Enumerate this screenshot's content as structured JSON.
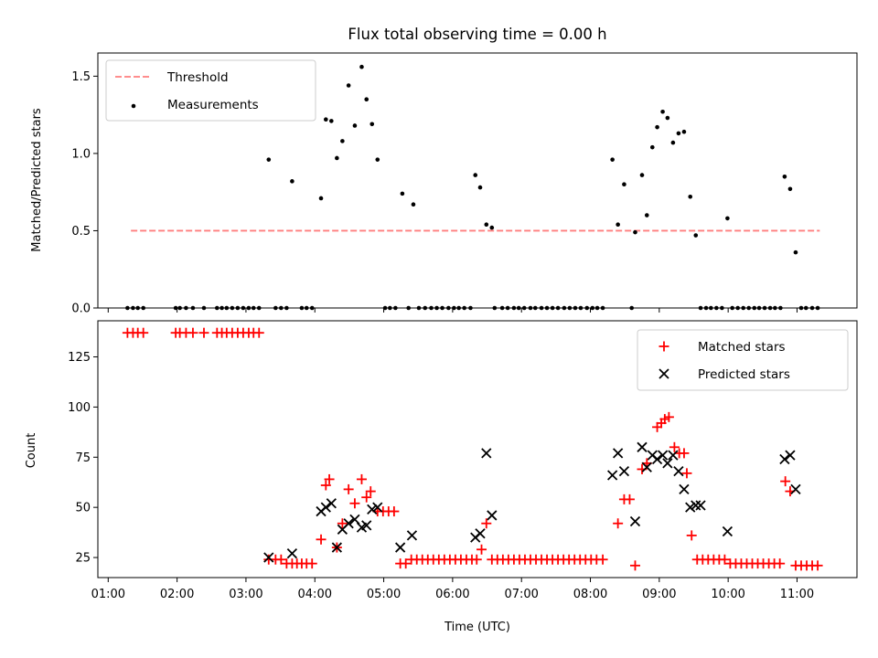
{
  "chart_data": [
    {
      "type": "scatter",
      "title": "Flux total observing time = 0.00 h",
      "xlabel": "",
      "ylabel": "Matched/Predicted stars",
      "xlim": [
        0.85,
        11.87
      ],
      "ylim": [
        0,
        1.65
      ],
      "xticks": [
        1,
        2,
        3,
        4,
        5,
        6,
        7,
        8,
        9,
        10,
        11
      ],
      "yticks": [
        {
          "value": 0,
          "label": "0.0"
        },
        {
          "value": 0.5,
          "label": "0.5"
        },
        {
          "value": 1.0,
          "label": "1.0"
        },
        {
          "value": 1.5,
          "label": "1.5"
        }
      ],
      "legend_position": "top-left",
      "series": [
        {
          "name": "Threshold",
          "kind": "line",
          "style": "dashed",
          "color": "#ff7f7f",
          "x": [
            1.33,
            11.33
          ],
          "y": [
            0.5,
            0.5
          ]
        },
        {
          "name": "Measurements",
          "kind": "scatter",
          "color": "#000000",
          "x": [
            1.28,
            1.36,
            1.43,
            1.51,
            1.98,
            2.04,
            2.13,
            2.23,
            2.39,
            2.58,
            2.65,
            2.72,
            2.8,
            2.88,
            2.96,
            3.04,
            3.11,
            3.19,
            3.33,
            3.43,
            3.51,
            3.59,
            3.67,
            3.81,
            3.88,
            3.96,
            4.09,
            4.16,
            4.24,
            4.32,
            4.4,
            4.49,
            4.58,
            4.68,
            4.75,
            4.83,
            4.91,
            5.02,
            5.09,
            5.17,
            5.27,
            5.36,
            5.43,
            5.51,
            5.6,
            5.69,
            5.77,
            5.85,
            5.94,
            6.02,
            6.09,
            6.17,
            6.26,
            6.33,
            6.4,
            6.49,
            6.57,
            6.61,
            6.72,
            6.8,
            6.89,
            6.96,
            7.04,
            7.13,
            7.2,
            7.29,
            7.37,
            7.45,
            7.53,
            7.62,
            7.7,
            7.78,
            7.86,
            7.95,
            8.03,
            8.1,
            8.18,
            8.32,
            8.4,
            8.49,
            8.6,
            8.65,
            8.75,
            8.82,
            8.9,
            8.97,
            9.05,
            9.12,
            9.2,
            9.28,
            9.36,
            9.45,
            9.53,
            9.6,
            9.68,
            9.75,
            9.83,
            9.91,
            9.99,
            10.06,
            10.14,
            10.22,
            10.3,
            10.38,
            10.45,
            10.53,
            10.61,
            10.68,
            10.76,
            10.82,
            10.9,
            10.98,
            11.06,
            11.13,
            11.22,
            11.3
          ],
          "y": [
            0,
            0,
            0,
            0,
            0,
            0,
            0,
            0,
            0,
            0,
            0,
            0,
            0,
            0,
            0,
            0,
            0,
            0,
            0.96,
            0,
            0,
            0,
            0.82,
            0,
            0,
            0,
            0.71,
            1.22,
            1.21,
            0.97,
            1.08,
            1.44,
            1.18,
            1.56,
            1.35,
            1.19,
            0.96,
            0,
            0,
            0,
            0.74,
            0,
            0.67,
            0,
            0,
            0,
            0,
            0,
            0,
            0,
            0,
            0,
            0,
            0.86,
            0.78,
            0.54,
            0.52,
            0,
            0,
            0,
            0,
            0,
            0,
            0,
            0,
            0,
            0,
            0,
            0,
            0,
            0,
            0,
            0,
            0,
            0,
            0,
            0,
            0.96,
            0.54,
            0.8,
            0,
            0.49,
            0.86,
            0.6,
            1.04,
            1.17,
            1.27,
            1.23,
            1.07,
            1.13,
            1.14,
            0.72,
            0.47,
            0,
            0,
            0,
            0,
            0,
            0.58,
            0,
            0,
            0,
            0,
            0,
            0,
            0,
            0,
            0,
            0,
            0.85,
            0.77,
            0.36,
            0,
            0,
            0,
            0
          ]
        }
      ]
    },
    {
      "type": "scatter",
      "title": "",
      "xlabel": "Time (UTC)",
      "ylabel": "Count",
      "xlim": [
        0.85,
        11.87
      ],
      "ylim": [
        15,
        143
      ],
      "xticks": [
        {
          "value": 1,
          "label": "01:00"
        },
        {
          "value": 2,
          "label": "02:00"
        },
        {
          "value": 3,
          "label": "03:00"
        },
        {
          "value": 4,
          "label": "04:00"
        },
        {
          "value": 5,
          "label": "05:00"
        },
        {
          "value": 6,
          "label": "06:00"
        },
        {
          "value": 7,
          "label": "07:00"
        },
        {
          "value": 8,
          "label": "08:00"
        },
        {
          "value": 9,
          "label": "09:00"
        },
        {
          "value": 10,
          "label": "10:00"
        },
        {
          "value": 11,
          "label": "11:00"
        }
      ],
      "yticks": [
        {
          "value": 25,
          "label": "25"
        },
        {
          "value": 50,
          "label": "50"
        },
        {
          "value": 75,
          "label": "75"
        },
        {
          "value": 100,
          "label": "100"
        },
        {
          "value": 125,
          "label": "125"
        }
      ],
      "legend_position": "top-right",
      "series": [
        {
          "name": "Matched stars",
          "kind": "scatter",
          "marker": "plus",
          "color": "#ff0000",
          "x": [
            1.28,
            1.36,
            1.43,
            1.51,
            1.98,
            2.04,
            2.13,
            2.23,
            2.39,
            2.58,
            2.65,
            2.72,
            2.8,
            2.88,
            2.96,
            3.04,
            3.11,
            3.19,
            3.33,
            3.43,
            3.51,
            3.59,
            3.67,
            3.74,
            3.81,
            3.88,
            3.96,
            4.09,
            4.16,
            4.21,
            4.32,
            4.4,
            4.49,
            4.58,
            4.68,
            4.75,
            4.81,
            4.91,
            4.99,
            5.07,
            5.15,
            5.24,
            5.32,
            5.4,
            5.48,
            5.56,
            5.64,
            5.72,
            5.8,
            5.88,
            5.96,
            6.04,
            6.12,
            6.2,
            6.28,
            6.35,
            6.42,
            6.49,
            6.57,
            6.65,
            6.73,
            6.81,
            6.89,
            6.97,
            7.05,
            7.13,
            7.21,
            7.29,
            7.37,
            7.45,
            7.53,
            7.61,
            7.69,
            7.77,
            7.85,
            7.93,
            8.01,
            8.09,
            8.18,
            8.4,
            8.49,
            8.57,
            8.65,
            8.75,
            8.82,
            8.97,
            9.03,
            9.08,
            9.14,
            9.22,
            9.29,
            9.36,
            9.4,
            9.47,
            9.55,
            9.63,
            9.71,
            9.79,
            9.87,
            9.95,
            10.03,
            10.11,
            10.19,
            10.27,
            10.35,
            10.43,
            10.51,
            10.59,
            10.67,
            10.75,
            10.83,
            10.9,
            10.98,
            11.06,
            11.14,
            11.22,
            11.3
          ],
          "y": [
            137,
            137,
            137,
            137,
            137,
            137,
            137,
            137,
            137,
            137,
            137,
            137,
            137,
            137,
            137,
            137,
            137,
            137,
            24,
            24,
            24,
            22,
            22,
            22,
            22,
            22,
            22,
            34,
            61,
            64,
            30,
            42,
            59,
            52,
            64,
            55,
            58,
            48,
            48,
            48,
            48,
            22,
            22,
            24,
            24,
            24,
            24,
            24,
            24,
            24,
            24,
            24,
            24,
            24,
            24,
            24,
            29,
            42,
            24,
            24,
            24,
            24,
            24,
            24,
            24,
            24,
            24,
            24,
            24,
            24,
            24,
            24,
            24,
            24,
            24,
            24,
            24,
            24,
            24,
            42,
            54,
            54,
            21,
            69,
            72,
            90,
            92,
            94,
            95,
            80,
            77,
            77,
            67,
            36,
            24,
            24,
            24,
            24,
            24,
            24,
            22,
            22,
            22,
            22,
            22,
            22,
            22,
            22,
            22,
            22,
            63,
            58,
            21,
            21,
            21,
            21,
            21
          ]
        },
        {
          "name": "Predicted stars",
          "kind": "scatter",
          "marker": "x",
          "color": "#000000",
          "x": [
            3.33,
            3.67,
            4.09,
            4.16,
            4.24,
            4.32,
            4.4,
            4.49,
            4.58,
            4.68,
            4.75,
            4.83,
            4.91,
            5.24,
            5.41,
            6.33,
            6.4,
            6.49,
            6.57,
            8.32,
            8.4,
            8.49,
            8.65,
            8.75,
            8.82,
            8.9,
            8.97,
            9.05,
            9.12,
            9.2,
            9.28,
            9.36,
            9.45,
            9.53,
            9.6,
            9.99,
            10.82,
            10.9,
            10.98
          ],
          "y": [
            25,
            27,
            48,
            50,
            52,
            30,
            39,
            42,
            44,
            40,
            41,
            49,
            50,
            30,
            36,
            35,
            37,
            77,
            46,
            66,
            77,
            68,
            43,
            80,
            70,
            76,
            74,
            76,
            72,
            76,
            68,
            59,
            50,
            51,
            51,
            38,
            74,
            76,
            59
          ]
        }
      ]
    }
  ]
}
